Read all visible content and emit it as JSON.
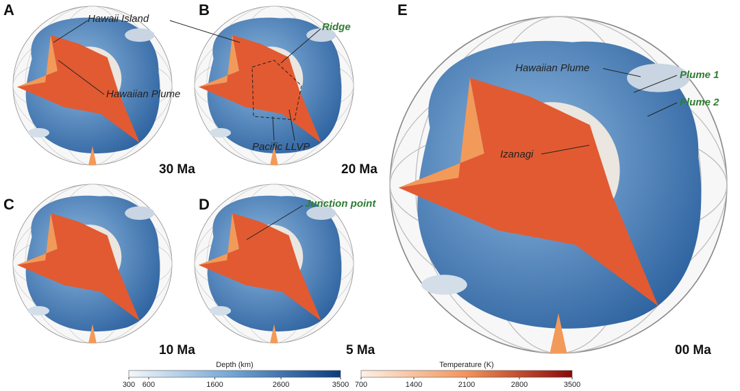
{
  "panels": [
    {
      "letter": "A",
      "age": "30 Ma",
      "annotations": [
        {
          "text": "Hawaii Island",
          "color": "#222222"
        },
        {
          "text": "Hawaiian Plume",
          "color": "#222222"
        }
      ]
    },
    {
      "letter": "B",
      "age": "20 Ma",
      "annotations": [
        {
          "text": "Ridge",
          "color": "#2e7d32"
        },
        {
          "text": "Pacific LLVP",
          "color": "#222222"
        }
      ]
    },
    {
      "letter": "C",
      "age": "10 Ma",
      "annotations": []
    },
    {
      "letter": "D",
      "age": "5 Ma",
      "annotations": [
        {
          "text": "Junction point",
          "color": "#2e7d32"
        }
      ]
    },
    {
      "letter": "E",
      "age": "00 Ma",
      "annotations": [
        {
          "text": "Hawaiian Plume",
          "color": "#222222"
        },
        {
          "text": "Plume 1",
          "color": "#2e7d32"
        },
        {
          "text": "Plume 2",
          "color": "#2e7d32"
        },
        {
          "text": "Izanagi",
          "color": "#222222"
        }
      ]
    }
  ],
  "colorbars": [
    {
      "title": "Depth (km)",
      "colors": [
        "#f4f7fb",
        "#6fa3d2",
        "#0b3c7d"
      ],
      "ticks": [
        300,
        600,
        1600,
        2600,
        3500
      ]
    },
    {
      "title": "Temperature (K)",
      "colors": [
        "#fdf1e4",
        "#f2935a",
        "#8a0a0a"
      ],
      "ticks": [
        700,
        1400,
        2100,
        2800,
        3500
      ]
    }
  ]
}
